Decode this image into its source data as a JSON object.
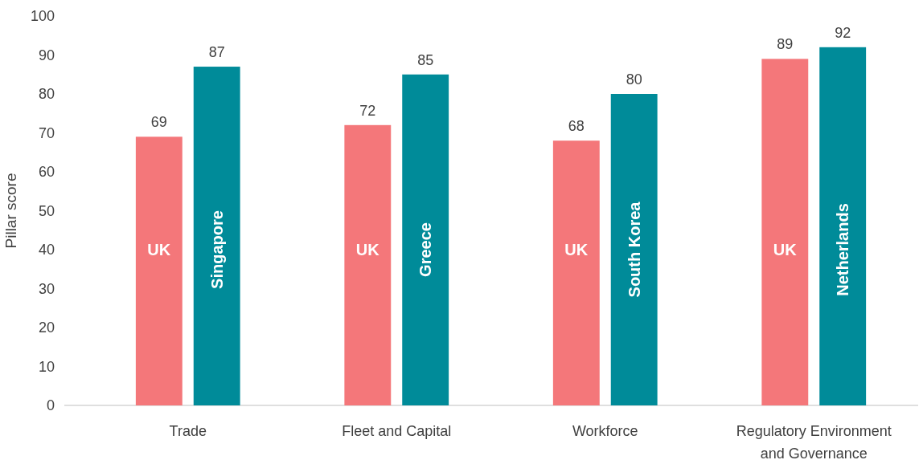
{
  "chart_data": {
    "type": "bar",
    "ylabel": "Pillar score",
    "categories": [
      "Trade",
      "Fleet and Capital",
      "Workforce",
      "Regulatory Environment and Governance"
    ],
    "series": [
      {
        "name": "UK",
        "color": "#f4777a",
        "values": [
          69,
          72,
          68,
          89
        ]
      },
      {
        "color": "#008b99",
        "values": [
          87,
          85,
          80,
          92
        ]
      }
    ],
    "annotations": [
      "Singapore",
      "Greece",
      "South Korea",
      "Netherlands"
    ],
    "ylim": [
      0,
      100
    ],
    "yticks": [
      0,
      10,
      20,
      30,
      40,
      50,
      60,
      70,
      80,
      90,
      100
    ],
    "data_labels": true,
    "grid": false
  }
}
